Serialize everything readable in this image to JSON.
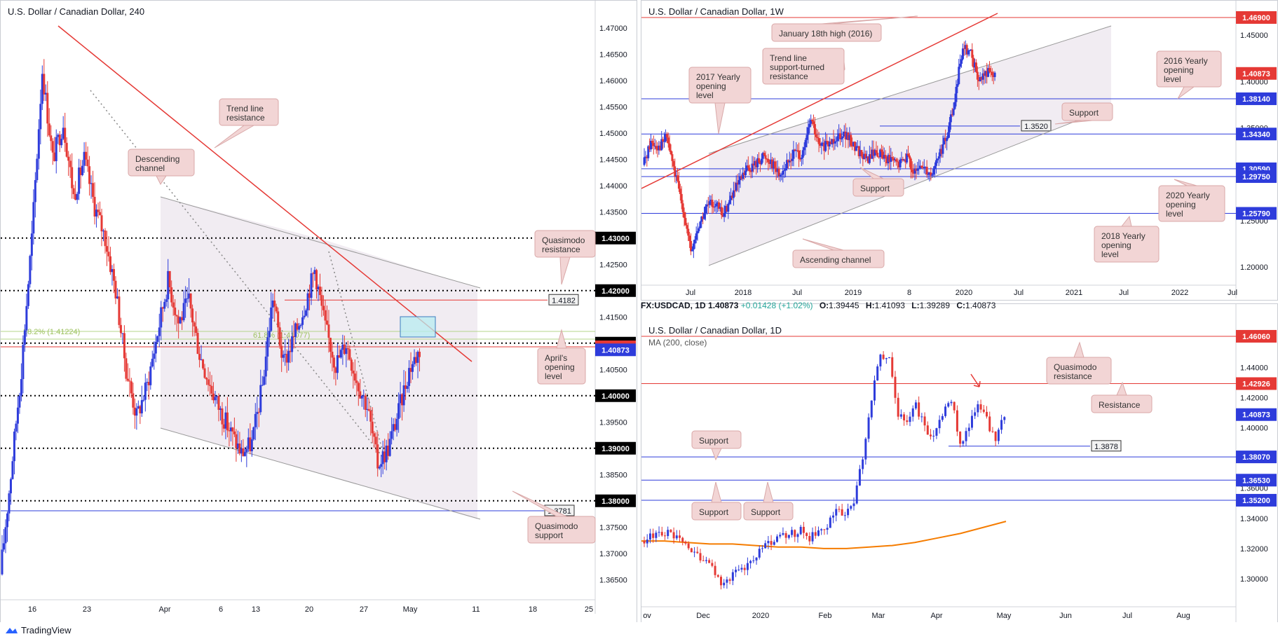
{
  "charts": {
    "h4": {
      "title": "U.S. Dollar / Canadian Dollar, 240",
      "y_ticks": [
        "1.47000",
        "1.46500",
        "1.46000",
        "1.45500",
        "1.45000",
        "1.44500",
        "1.44000",
        "1.43500",
        "1.43000",
        "1.42500",
        "1.42000",
        "1.41500",
        "1.41000",
        "1.40500",
        "1.40000",
        "1.39500",
        "1.39000",
        "1.38500",
        "1.38000",
        "1.37500",
        "1.37000",
        "1.36500"
      ],
      "x_ticks": [
        "16",
        "23",
        "Apr",
        "6",
        "13",
        "20",
        "27",
        "May",
        "11",
        "18",
        "25"
      ],
      "price_boxes": [
        {
          "label": "1.43000",
          "kind": "black"
        },
        {
          "label": "1.42000",
          "kind": "black"
        },
        {
          "label": "1.41000",
          "kind": "black"
        },
        {
          "label": "1.40930",
          "kind": "red"
        },
        {
          "label": "1.40873",
          "kind": "blue"
        },
        {
          "label": "1.40000",
          "kind": "black"
        },
        {
          "label": "1.39000",
          "kind": "black"
        },
        {
          "label": "1.38000",
          "kind": "black"
        }
      ],
      "line_labels": {
        "l4182": "1.4182",
        "l3781": "1.3781"
      },
      "fib_labels": {
        "f382": "38.2% (1.41224)",
        "f618": "61.8% (1.41077)"
      },
      "callouts": {
        "trend": [
          "Trend line",
          "resistance"
        ],
        "desc": [
          "Descending",
          "channel"
        ],
        "qr": [
          "Quasimodo",
          "resistance"
        ],
        "april": [
          "April's",
          "opening",
          "level"
        ],
        "qs": [
          "Quasimodo",
          "support"
        ]
      }
    },
    "weekly": {
      "title": "U.S. Dollar / Canadian Dollar, 1W",
      "y_ticks": [
        "1.45000",
        "1.40000",
        "1.35000",
        "1.30000",
        "1.25000",
        "1.20000"
      ],
      "x_ticks": [
        "Jul",
        "2018",
        "Jul",
        "2019",
        "8",
        "2020",
        "Jul",
        "2021",
        "Jul",
        "2022",
        "Jul"
      ],
      "price_boxes": [
        {
          "label": "1.46900",
          "kind": "red"
        },
        {
          "label": "1.40873",
          "kind": "red"
        },
        {
          "label": "1.38140",
          "kind": "blue"
        },
        {
          "label": "1.34340",
          "kind": "blue"
        },
        {
          "label": "1.30590",
          "kind": "blue"
        },
        {
          "label": "1.29750",
          "kind": "blue"
        },
        {
          "label": "1.25790",
          "kind": "blue"
        }
      ],
      "line_labels": {
        "l3520": "1.3520"
      },
      "callouts": {
        "jan": [
          "January 18th high (2016)"
        ],
        "trend": [
          "Trend line",
          "support-turned",
          "resistance"
        ],
        "y2017": [
          "2017 Yearly",
          "opening",
          "level"
        ],
        "y2016": [
          "2016 Yearly",
          "opening",
          "level"
        ],
        "support1": [
          "Support"
        ],
        "support2": [
          "Support"
        ],
        "y2020": [
          "2020 Yearly",
          "opening",
          "level"
        ],
        "y2018": [
          "2018 Yearly",
          "opening",
          "level"
        ],
        "asc": [
          "Ascending channel"
        ]
      }
    },
    "daily": {
      "symbol_bar": {
        "symbol": "FX:USDCAD, 1D",
        "close": "1.40873",
        "change": "+0.01428 (+1.02%)",
        "o": "1.39445",
        "h": "1.41093",
        "l": "1.39289",
        "c": "1.40873"
      },
      "title": "U.S. Dollar / Canadian Dollar, 1D",
      "ma_label": "MA (200, close)",
      "y_ticks": [
        "1.44000",
        "1.42000",
        "1.40000",
        "1.38000",
        "1.36000",
        "1.34000",
        "1.32000",
        "1.30000"
      ],
      "x_ticks": [
        "ov",
        "Dec",
        "2020",
        "Feb",
        "Mar",
        "Apr",
        "May",
        "Jun",
        "Jul",
        "Aug"
      ],
      "price_boxes": [
        {
          "label": "1.46060",
          "kind": "red"
        },
        {
          "label": "1.42926",
          "kind": "red"
        },
        {
          "label": "1.40873",
          "kind": "blue"
        },
        {
          "label": "1.38070",
          "kind": "blue"
        },
        {
          "label": "1.36530",
          "kind": "blue"
        },
        {
          "label": "1.35200",
          "kind": "blue"
        }
      ],
      "line_labels": {
        "l3878": "1.3878"
      },
      "callouts": {
        "qr": [
          "Quasimodo",
          "resistance"
        ],
        "res": [
          "Resistance"
        ],
        "sup1": [
          "Support"
        ],
        "sup2": [
          "Support"
        ],
        "sup3": [
          "Support"
        ]
      }
    }
  },
  "chart_data": [
    {
      "type": "candlestick",
      "title": "U.S. Dollar / Canadian Dollar, 240",
      "ylim": [
        1.3605,
        1.4725
      ],
      "levels": [
        1.43,
        1.42,
        1.41,
        1.4093,
        1.40873,
        1.4,
        1.39,
        1.38,
        1.4182,
        1.3781
      ],
      "fib": [
        {
          "label": "38.2%",
          "value": 1.41224
        },
        {
          "label": "61.8%",
          "value": 1.41077
        }
      ],
      "close_path": [
        1.366,
        1.385,
        1.405,
        1.43,
        1.462,
        1.445,
        1.452,
        1.438,
        1.445,
        1.436,
        1.43,
        1.42,
        1.405,
        1.396,
        1.402,
        1.412,
        1.422,
        1.414,
        1.418,
        1.408,
        1.402,
        1.397,
        1.393,
        1.389,
        1.391,
        1.402,
        1.419,
        1.406,
        1.411,
        1.417,
        1.424,
        1.413,
        1.406,
        1.41,
        1.403,
        1.398,
        1.387,
        1.39,
        1.397,
        1.405,
        1.4087
      ]
    },
    {
      "type": "candlestick",
      "title": "U.S. Dollar / Canadian Dollar, 1W",
      "ylim": [
        1.185,
        1.472
      ],
      "levels": [
        1.469,
        1.40873,
        1.3814,
        1.3434,
        1.3059,
        1.2975,
        1.2579,
        1.352
      ],
      "close_path": [
        1.31,
        1.335,
        1.33,
        1.34,
        1.3,
        1.265,
        1.215,
        1.245,
        1.265,
        1.27,
        1.255,
        1.275,
        1.29,
        1.305,
        1.31,
        1.32,
        1.315,
        1.3,
        1.31,
        1.325,
        1.32,
        1.36,
        1.33,
        1.33,
        1.34,
        1.345,
        1.335,
        1.325,
        1.315,
        1.325,
        1.32,
        1.315,
        1.31,
        1.32,
        1.3,
        1.31,
        1.3,
        1.32,
        1.34,
        1.38,
        1.44,
        1.43,
        1.4,
        1.41,
        1.4087
      ]
    },
    {
      "type": "candlestick",
      "title": "U.S. Dollar / Canadian Dollar, 1D",
      "ylim": [
        1.287,
        1.468
      ],
      "levels": [
        1.4606,
        1.42926,
        1.40873,
        1.3807,
        1.3653,
        1.352,
        1.3878
      ],
      "close_path": [
        1.325,
        1.327,
        1.332,
        1.33,
        1.326,
        1.322,
        1.318,
        1.312,
        1.306,
        1.298,
        1.3,
        1.305,
        1.31,
        1.316,
        1.322,
        1.324,
        1.328,
        1.33,
        1.332,
        1.327,
        1.33,
        1.335,
        1.345,
        1.343,
        1.35,
        1.38,
        1.42,
        1.45,
        1.445,
        1.41,
        1.405,
        1.415,
        1.4,
        1.395,
        1.41,
        1.42,
        1.39,
        1.4,
        1.415,
        1.405,
        1.39,
        1.4087
      ],
      "ma200": [
        1.325,
        1.325,
        1.324,
        1.323,
        1.323,
        1.322,
        1.321,
        1.321,
        1.32,
        1.32,
        1.321,
        1.322,
        1.324,
        1.327,
        1.33,
        1.334,
        1.338
      ]
    }
  ]
}
